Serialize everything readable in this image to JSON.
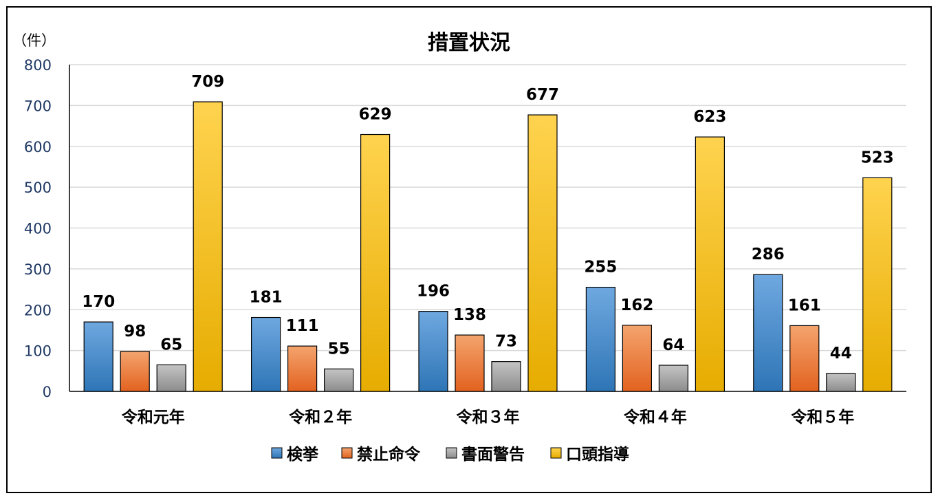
{
  "chart_data": {
    "type": "bar",
    "title": "措置状況",
    "unit_label": "（件）",
    "categories": [
      "令和元年",
      "令和２年",
      "令和３年",
      "令和４年",
      "令和５年"
    ],
    "series": [
      {
        "name": "検挙",
        "values": [
          170,
          181,
          196,
          255,
          286
        ],
        "color_top": "#6fa8e0",
        "color_bottom": "#2e75b6"
      },
      {
        "name": "禁止命令",
        "values": [
          98,
          111,
          138,
          162,
          161
        ],
        "color_top": "#f4a46e",
        "color_bottom": "#e2621f"
      },
      {
        "name": "書面警告",
        "values": [
          65,
          55,
          73,
          64,
          44
        ],
        "color_top": "#c4c4c4",
        "color_bottom": "#8c8c8c"
      },
      {
        "name": "口頭指導",
        "values": [
          709,
          629,
          677,
          623,
          523
        ],
        "color_top": "#ffd34f",
        "color_bottom": "#e6ac00"
      }
    ],
    "ylim": [
      0,
      800
    ],
    "yticks": [
      0,
      100,
      200,
      300,
      400,
      500,
      600,
      700,
      800
    ],
    "grid": true,
    "legend_position": "bottom"
  }
}
